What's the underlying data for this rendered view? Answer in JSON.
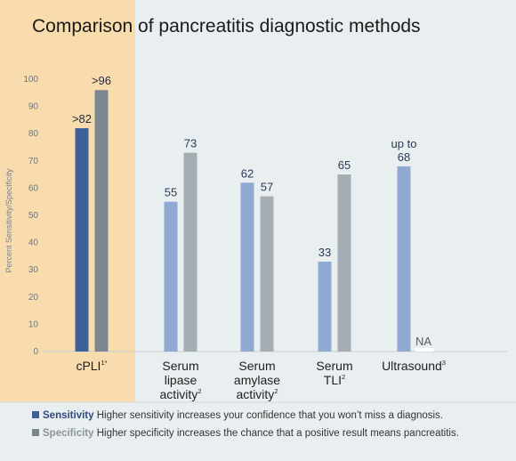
{
  "title": "Comparison of pancreatitis diagnostic methods",
  "colors": {
    "sensitivity_highlight": "#3d5f9a",
    "specificity_highlight": "#7d8790",
    "sensitivity": "#8fa9d3",
    "specificity": "#a3adb3",
    "highlight_panel": "#f8dcae",
    "background": "#e9eef0"
  },
  "legend": {
    "sensitivity_label": "Sensitivity",
    "sensitivity_text": "Higher sensitivity increases your confidence that you won’t miss a diagnosis.",
    "specificity_label": "Specificity",
    "specificity_text": "Higher specificity increases the chance that a positive result means pancreatitis."
  },
  "chart_data": {
    "type": "bar",
    "title": "Comparison of pancreatitis diagnostic methods",
    "ylabel": "Percent Sensitivity/Specificity",
    "ylim": [
      0,
      100
    ],
    "yticks": [
      0,
      10,
      20,
      30,
      40,
      50,
      60,
      70,
      80,
      90,
      100
    ],
    "grid": false,
    "highlighted_category": 0,
    "categories": [
      {
        "lines": [
          "cPLI"
        ],
        "sup": "1*"
      },
      {
        "lines": [
          "Serum",
          "lipase",
          "activity"
        ],
        "sup": "2"
      },
      {
        "lines": [
          "Serum",
          "amylase",
          "activity"
        ],
        "sup": "2"
      },
      {
        "lines": [
          "Serum",
          "TLI"
        ],
        "sup": "2"
      },
      {
        "lines": [
          "Ultrasound"
        ],
        "sup": "3"
      }
    ],
    "series": [
      {
        "name": "Sensitivity",
        "values": [
          82,
          55,
          62,
          33,
          68
        ],
        "labels": [
          ">82",
          "55",
          "62",
          "33",
          "up to|68"
        ]
      },
      {
        "name": "Specificity",
        "values": [
          96,
          73,
          57,
          65,
          null
        ],
        "labels": [
          ">96",
          "73",
          "57",
          "65",
          "NA"
        ]
      }
    ]
  }
}
